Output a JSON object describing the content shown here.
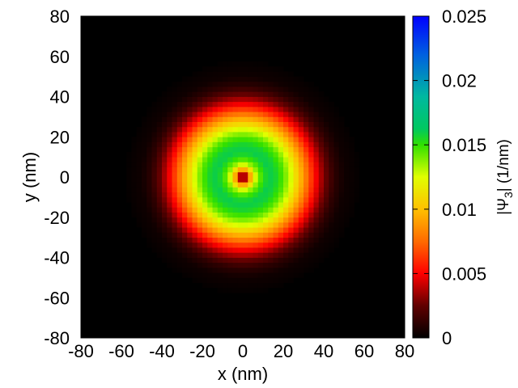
{
  "chart_data": {
    "type": "heatmap",
    "title": "",
    "xlabel": "x (nm)",
    "ylabel": "y (nm)",
    "xlim": [
      -80,
      80
    ],
    "ylim": [
      -80,
      80
    ],
    "xticks": [
      "-80",
      "-60",
      "-40",
      "-20",
      "0",
      "20",
      "40",
      "60",
      "80"
    ],
    "yticks": [
      "-80",
      "-60",
      "-40",
      "-20",
      "0",
      "20",
      "40",
      "60",
      "80"
    ],
    "grid_cells": [
      64,
      64
    ],
    "radial_profile": {
      "description_units": "r in nm, value in 1/nm",
      "r": [
        0,
        1.5,
        3,
        5,
        7,
        10,
        13,
        16,
        20,
        24,
        28,
        32,
        36,
        40,
        45,
        50,
        60,
        80
      ],
      "value": [
        0.0,
        0.003,
        0.008,
        0.011,
        0.0135,
        0.0152,
        0.016,
        0.0157,
        0.0145,
        0.0125,
        0.01,
        0.0075,
        0.005,
        0.003,
        0.0012,
        0.0004,
        0.0,
        0.0
      ]
    },
    "colorbar": {
      "label": "|Ψ",
      "label_sub": "3",
      "label_units": "| (1/nm)",
      "range": [
        0,
        0.025
      ],
      "ticks": [
        "0",
        "0.005",
        "0.01",
        "0.015",
        "0.02",
        "0.025"
      ],
      "colormap": [
        {
          "v": 0.0,
          "color": "#000000"
        },
        {
          "v": 0.1,
          "color": "#600000"
        },
        {
          "v": 0.2,
          "color": "#ff0000"
        },
        {
          "v": 0.3,
          "color": "#ff6a00"
        },
        {
          "v": 0.4,
          "color": "#ffc000"
        },
        {
          "v": 0.5,
          "color": "#e0ff00"
        },
        {
          "v": 0.6,
          "color": "#30e000"
        },
        {
          "v": 0.65,
          "color": "#00c860"
        },
        {
          "v": 0.75,
          "color": "#00b8a0"
        },
        {
          "v": 0.88,
          "color": "#0060e0"
        },
        {
          "v": 1.0,
          "color": "#0000ff"
        }
      ]
    }
  }
}
